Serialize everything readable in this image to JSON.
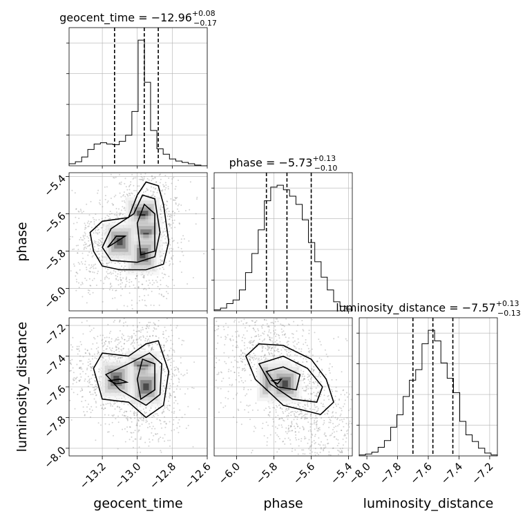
{
  "chart_data": {
    "type": "corner",
    "parameters": [
      {
        "name": "geocent_time",
        "label": "geocent_time",
        "title": {
          "prefix": "geocent_time = ",
          "median": "−12.96",
          "plus": "+0.08",
          "minus": "−0.17"
        },
        "median": -12.96,
        "quantiles": [
          -13.13,
          -12.96,
          -12.88
        ],
        "range": [
          -13.39,
          -12.6
        ],
        "ticks": [
          -13.2,
          -13.0,
          -12.8,
          -12.6
        ],
        "tick_labels": [
          "−13.2",
          "−13.0",
          "−12.8",
          "−12.6"
        ],
        "hist_bins": [
          -13.39,
          -13.354,
          -13.318,
          -13.283,
          -13.247,
          -13.211,
          -13.175,
          -13.139,
          -13.103,
          -13.067,
          -13.031,
          -12.995,
          -12.959,
          -12.924,
          -12.888,
          -12.852,
          -12.816,
          -12.78,
          -12.744,
          -12.708,
          -12.672,
          -12.636,
          -12.6
        ],
        "hist_counts": [
          3,
          6,
          13,
          24,
          32,
          34,
          32,
          31,
          36,
          45,
          80,
          185,
          123,
          52,
          25,
          17,
          10,
          7,
          5,
          3,
          1,
          0
        ]
      },
      {
        "name": "phase",
        "label": "phase",
        "title": {
          "prefix": "phase = ",
          "median": "−5.73",
          "plus": "+0.13",
          "minus": "−0.10"
        },
        "median": -5.73,
        "quantiles": [
          -5.84,
          -5.73,
          -5.6
        ],
        "range": [
          -6.12,
          -5.38
        ],
        "ticks": [
          -6.0,
          -5.8,
          -5.6,
          -5.4
        ],
        "tick_labels": [
          "−6.0",
          "−5.8",
          "−5.6",
          "−5.4"
        ],
        "hist_bins": [
          -6.12,
          -6.086,
          -6.053,
          -6.019,
          -5.985,
          -5.952,
          -5.918,
          -5.884,
          -5.851,
          -5.817,
          -5.783,
          -5.749,
          -5.716,
          -5.682,
          -5.648,
          -5.615,
          -5.581,
          -5.547,
          -5.514,
          -5.48,
          -5.446,
          -5.413,
          -5.38
        ],
        "hist_counts": [
          1,
          3,
          8,
          12,
          23,
          42,
          63,
          89,
          121,
          136,
          138,
          133,
          126,
          117,
          100,
          75,
          54,
          37,
          23,
          10,
          5,
          2
        ]
      },
      {
        "name": "luminosity_distance",
        "label": "luminosity_distance",
        "title": {
          "prefix": "luminosity_distance = ",
          "median": "−7.57",
          "plus": "+0.13",
          "minus": "−0.13"
        },
        "median": -7.57,
        "quantiles": [
          -7.7,
          -7.57,
          -7.44
        ],
        "range": [
          -8.05,
          -7.15
        ],
        "ticks": [
          -8.0,
          -7.8,
          -7.6,
          -7.4,
          -7.2
        ],
        "tick_labels": [
          "−8.0",
          "−7.8",
          "−7.6",
          "−7.4",
          "−7.2"
        ],
        "hist_bins": [
          -8.05,
          -8.009,
          -7.968,
          -7.927,
          -7.886,
          -7.845,
          -7.805,
          -7.764,
          -7.723,
          -7.682,
          -7.641,
          -7.6,
          -7.559,
          -7.518,
          -7.477,
          -7.436,
          -7.395,
          -7.355,
          -7.314,
          -7.273,
          -7.232,
          -7.191,
          -7.15
        ],
        "hist_counts": [
          1,
          2,
          4,
          9,
          16,
          30,
          43,
          62,
          79,
          90,
          117,
          131,
          120,
          97,
          81,
          66,
          36,
          22,
          15,
          8,
          3,
          1
        ]
      }
    ],
    "pairs": [
      {
        "x": "geocent_time",
        "y": "phase"
      },
      {
        "x": "geocent_time",
        "y": "luminosity_distance"
      },
      {
        "x": "phase",
        "y": "luminosity_distance"
      }
    ],
    "grid": true,
    "contours": true,
    "scatter_points": true
  }
}
